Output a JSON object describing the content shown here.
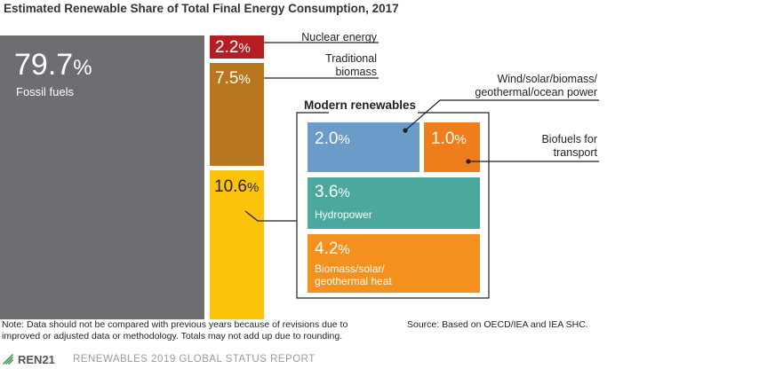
{
  "chart_data": {
    "type": "treemap",
    "title": "Estimated Renewable Share of Total Final Energy Consumption, 2017",
    "unit": "%",
    "segments": [
      {
        "label": "Fossil fuels",
        "value": 79.7
      },
      {
        "label": "Nuclear energy",
        "value": 2.2
      },
      {
        "label": "Traditional biomass",
        "value": 7.5
      },
      {
        "label": "Modern renewables",
        "value": 10.6,
        "children": [
          {
            "label": "Wind/solar/biomass/geothermal/ocean power",
            "value": 2.0
          },
          {
            "label": "Biofuels for transport",
            "value": 1.0
          },
          {
            "label": "Hydropower",
            "value": 3.6
          },
          {
            "label": "Biomass/solar/geothermal heat",
            "value": 4.2
          }
        ]
      }
    ]
  },
  "labels": {
    "fossil_num": "79.7",
    "fossil_pct": "%",
    "fossil_name": "Fossil fuels",
    "nuclear_num": "2.2",
    "nuclear_pct": "%",
    "nuclear_name": "Nuclear energy",
    "tradbio_num": "7.5",
    "tradbio_pct": "%",
    "tradbio_name_1": "Traditional",
    "tradbio_name_2": "biomass",
    "modern_num": "10.6",
    "modern_pct": "%",
    "modern_title": "Modern renewables",
    "wind_num": "2.0",
    "wind_pct": "%",
    "wind_name_1": "Wind/solar/biomass/",
    "wind_name_2": "geothermal/ocean power",
    "biofuel_num": "1.0",
    "biofuel_pct": "%",
    "biofuel_name_1": "Biofuels for",
    "biofuel_name_2": "transport",
    "hydro_num": "3.6",
    "hydro_pct": "%",
    "hydro_name": "Hydropower",
    "heat_num": "4.2",
    "heat_pct": "%",
    "heat_name_1": "Biomass/solar/",
    "heat_name_2": "geothermal heat"
  },
  "colors": {
    "fossil": "#6d6e71",
    "nuclear": "#b51f24",
    "tradbio": "#b8761e",
    "modern": "#fcc30b",
    "wind": "#6b9bc7",
    "biofuel": "#f07d1c",
    "hydro": "#4ba89c",
    "heat": "#f4901e"
  },
  "note": {
    "line1": "Note: Data should not be compared with previous years because of revisions due to",
    "line2": "improved or adjusted data or methodology. Totals may not add up due to rounding.",
    "source": "Source: Based on OECD/IEA and IEA SHC."
  },
  "footer": {
    "logo": "REN21",
    "report": "RENEWABLES 2019 GLOBAL STATUS REPORT"
  }
}
